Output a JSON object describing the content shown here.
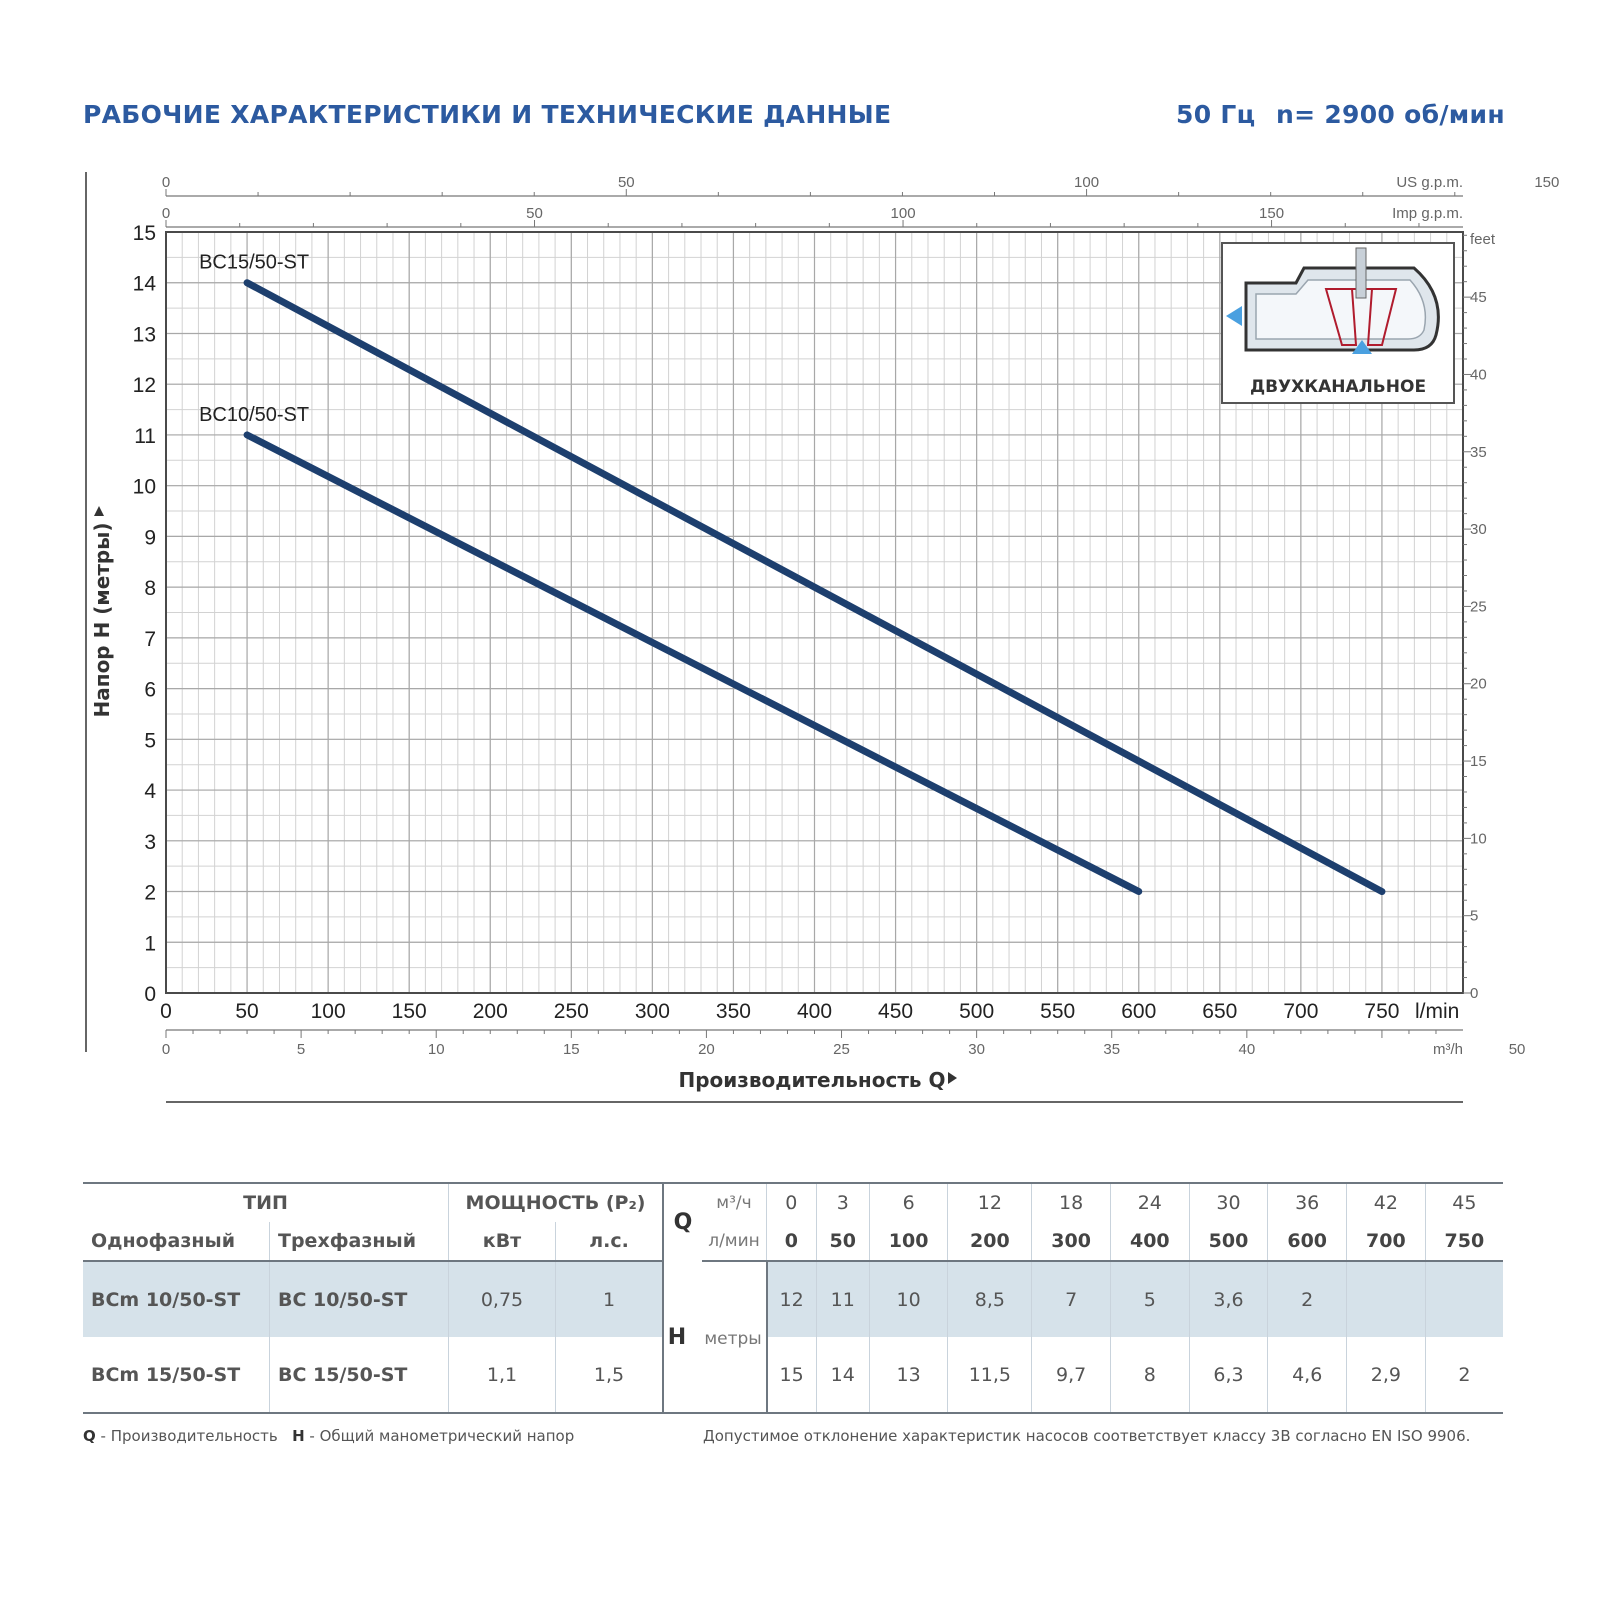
{
  "header": {
    "title": "РАБОЧИЕ ХАРАКТЕРИСТИКИ И ТЕХНИЧЕСКИЕ ДАННЫЕ",
    "frequency": "50 Гц",
    "speed": "n= 2900 об/мин"
  },
  "chart_data": {
    "type": "line",
    "xlabel": "Производительность Q",
    "ylabel": "Напор H (метры)",
    "x_unit": "l/min",
    "xlim": [
      0,
      800
    ],
    "ylim": [
      0,
      15
    ],
    "grid": true,
    "x_ticks": [
      "0",
      "50",
      "100",
      "150",
      "200",
      "250",
      "300",
      "350",
      "400",
      "450",
      "500",
      "550",
      "600",
      "650",
      "700",
      "750"
    ],
    "y_ticks": [
      "0",
      "1",
      "2",
      "3",
      "4",
      "5",
      "6",
      "7",
      "8",
      "9",
      "10",
      "11",
      "12",
      "13",
      "14",
      "15"
    ],
    "secondary_axes": {
      "us_gpm": {
        "label": "US g.p.m.",
        "ticks": [
          "0",
          "50",
          "100",
          "150"
        ]
      },
      "imp_gpm": {
        "label": "Imp g.p.m.",
        "ticks": [
          "0",
          "50",
          "100",
          "150"
        ]
      },
      "m3h": {
        "label": "m³/h",
        "ticks": [
          "0",
          "5",
          "10",
          "15",
          "20",
          "25",
          "30",
          "35",
          "40",
          "50"
        ]
      },
      "feet": {
        "label": "feet",
        "ticks": [
          "0",
          "5",
          "10",
          "15",
          "20",
          "25",
          "30",
          "35",
          "40",
          "45"
        ]
      }
    },
    "series": [
      {
        "name": "BC15/50-ST",
        "x": [
          50,
          750
        ],
        "y": [
          14,
          2
        ]
      },
      {
        "name": "BC10/50-ST",
        "x": [
          50,
          600
        ],
        "y": [
          11,
          2
        ]
      }
    ],
    "inset_label": "ДВУХКАНАЛЬНОЕ",
    "line_color": "#1d3f6e"
  },
  "table": {
    "type_header": "ТИП",
    "power_header": "МОЩНОСТЬ (P₂)",
    "single_phase": "Однофазный",
    "three_phase": "Трехфазный",
    "kw": "кВт",
    "hp": "л.с.",
    "q_label": "Q",
    "q_unit_m3": "м³/ч",
    "q_unit_lmin": "л/мин",
    "h_label": "H",
    "h_unit": "метры",
    "q_m3h": [
      "0",
      "3",
      "6",
      "12",
      "18",
      "24",
      "30",
      "36",
      "42",
      "45"
    ],
    "q_lmin": [
      "0",
      "50",
      "100",
      "200",
      "300",
      "400",
      "500",
      "600",
      "700",
      "750"
    ],
    "rows": [
      {
        "single": "BCm 10/50-ST",
        "three": "BC 10/50-ST",
        "kw": "0,75",
        "hp": "1",
        "h": [
          "12",
          "11",
          "10",
          "8,5",
          "7",
          "5",
          "3,6",
          "2",
          "",
          ""
        ]
      },
      {
        "single": "BCm 15/50-ST",
        "three": "BC 15/50-ST",
        "kw": "1,1",
        "hp": "1,5",
        "h": [
          "15",
          "14",
          "13",
          "11,5",
          "9,7",
          "8",
          "6,3",
          "4,6",
          "2,9",
          "2"
        ]
      }
    ]
  },
  "footer": {
    "q_abbr": "Q",
    "q_text": " - Производительность",
    "h_abbr": "H",
    "h_text": " - Общий манометрический напор",
    "tolerance": "Допустимое отклонение характеристик насосов соответствует классу 3B согласно EN ISO 9906."
  }
}
